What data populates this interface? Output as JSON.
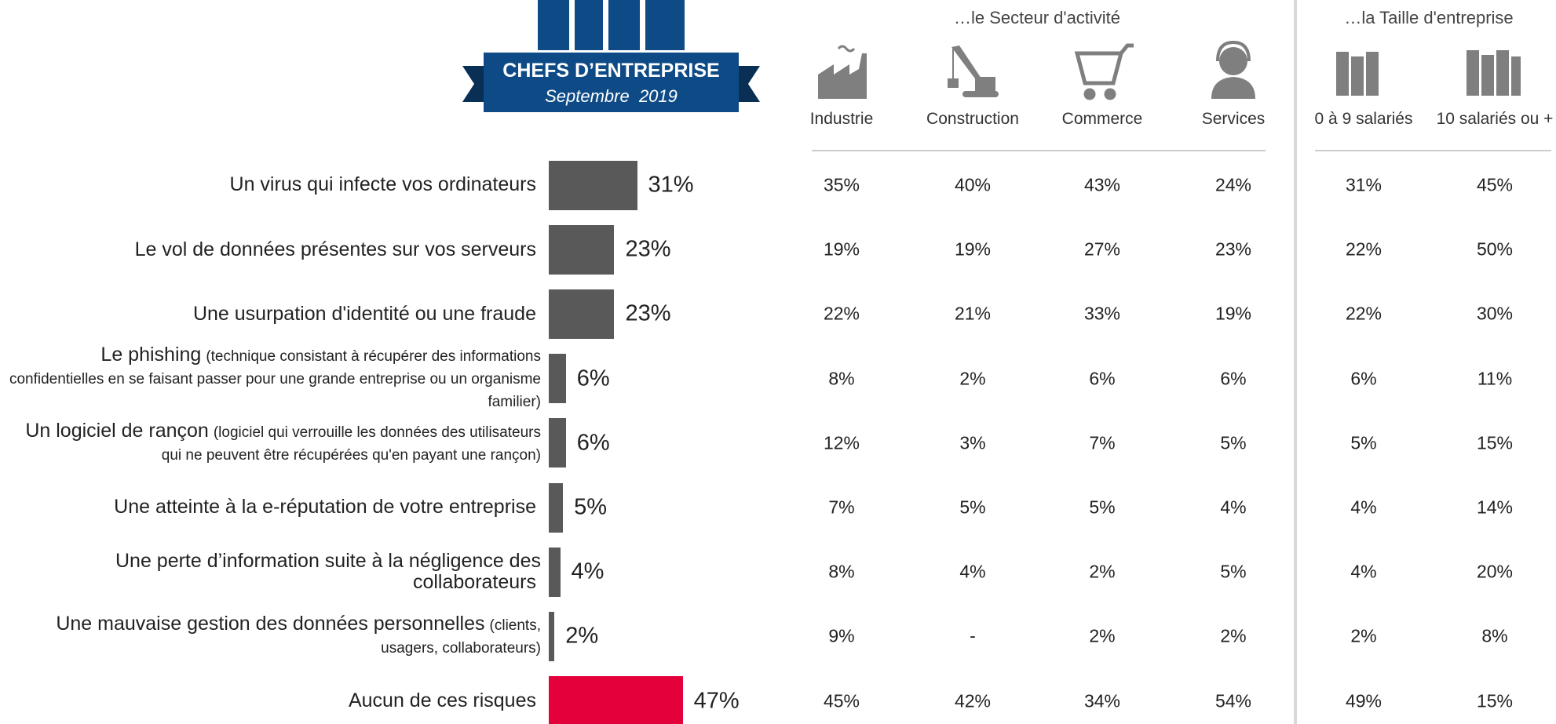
{
  "logo": {
    "title": "CHEFS D’ENTREPRISE",
    "subtitle": "Septembre  2019"
  },
  "chart_data": {
    "type": "bar",
    "orientation": "horizontal",
    "categories": [
      "Un virus qui infecte vos ordinateurs",
      "Le vol de données présentes sur vos serveurs",
      "Une usurpation d'identité ou une fraude",
      "Le phishing",
      "Un logiciel de rançon",
      "Une atteinte à la e-réputation de votre entreprise",
      "Une perte d’information suite à la négligence des collaborateurs",
      "Une mauvaise gestion des données personnelles",
      "Aucun de ces risques"
    ],
    "category_notes": [
      null,
      null,
      null,
      "(technique consistant à récupérer des informations confidentielles en se faisant passer pour une grande entreprise ou un organisme familier)",
      "(logiciel qui verrouille les données des utilisateurs qui ne peuvent être récupérées qu'en payant une rançon)",
      null,
      null,
      "(clients, usagers, collaborateurs)",
      null
    ],
    "values": [
      31,
      23,
      23,
      6,
      6,
      5,
      4,
      2,
      47
    ],
    "value_labels": [
      "31%",
      "23%",
      "23%",
      "6%",
      "6%",
      "5%",
      "4%",
      "2%",
      "47%"
    ],
    "colors": [
      "#595959",
      "#595959",
      "#595959",
      "#595959",
      "#595959",
      "#595959",
      "#595959",
      "#595959",
      "#e4003b"
    ],
    "xlim": [
      0,
      100
    ]
  },
  "table": {
    "groups": [
      {
        "title": "…le Secteur d'activité",
        "columns": [
          "Industrie",
          "Construction",
          "Commerce",
          "Services"
        ]
      },
      {
        "title": "…la Taille d'entreprise",
        "columns": [
          "0 à 9 salariés",
          "10 salariés ou +"
        ]
      }
    ],
    "rows": [
      [
        "35%",
        "40%",
        "43%",
        "24%",
        "31%",
        "45%"
      ],
      [
        "19%",
        "19%",
        "27%",
        "23%",
        "22%",
        "50%"
      ],
      [
        "22%",
        "21%",
        "33%",
        "19%",
        "22%",
        "30%"
      ],
      [
        "8%",
        "2%",
        "6%",
        "6%",
        "6%",
        "11%"
      ],
      [
        "12%",
        "3%",
        "7%",
        "5%",
        "5%",
        "15%"
      ],
      [
        "7%",
        "5%",
        "5%",
        "4%",
        "4%",
        "14%"
      ],
      [
        "8%",
        "4%",
        "2%",
        "5%",
        "4%",
        "20%"
      ],
      [
        "9%",
        "-",
        "2%",
        "2%",
        "2%",
        "8%"
      ],
      [
        "45%",
        "42%",
        "34%",
        "54%",
        "49%",
        "15%"
      ]
    ]
  }
}
